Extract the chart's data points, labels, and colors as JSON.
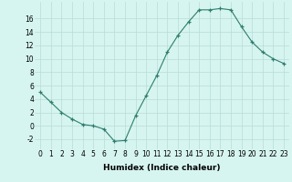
{
  "x": [
    0,
    1,
    2,
    3,
    4,
    5,
    6,
    7,
    8,
    9,
    10,
    11,
    12,
    13,
    14,
    15,
    16,
    17,
    18,
    19,
    20,
    21,
    22,
    23
  ],
  "y": [
    5,
    3.5,
    2,
    1,
    0.2,
    0,
    -0.5,
    -2.3,
    -2.2,
    1.5,
    4.5,
    7.5,
    11,
    13.5,
    15.5,
    17.3,
    17.3,
    17.5,
    17.3,
    14.8,
    12.5,
    11,
    10,
    9.3
  ],
  "xlabel": "Humidex (Indice chaleur)",
  "xlim": [
    -0.5,
    23.5
  ],
  "ylim": [
    -3.5,
    18.5
  ],
  "yticks": [
    -2,
    0,
    2,
    4,
    6,
    8,
    10,
    12,
    14,
    16
  ],
  "xticks": [
    0,
    1,
    2,
    3,
    4,
    5,
    6,
    7,
    8,
    9,
    10,
    11,
    12,
    13,
    14,
    15,
    16,
    17,
    18,
    19,
    20,
    21,
    22,
    23
  ],
  "line_color": "#2e7d6e",
  "marker": "+",
  "bg_color": "#d6f5f0",
  "grid_color": "#b8dcd6",
  "label_fontsize": 6.5,
  "tick_fontsize": 5.5
}
